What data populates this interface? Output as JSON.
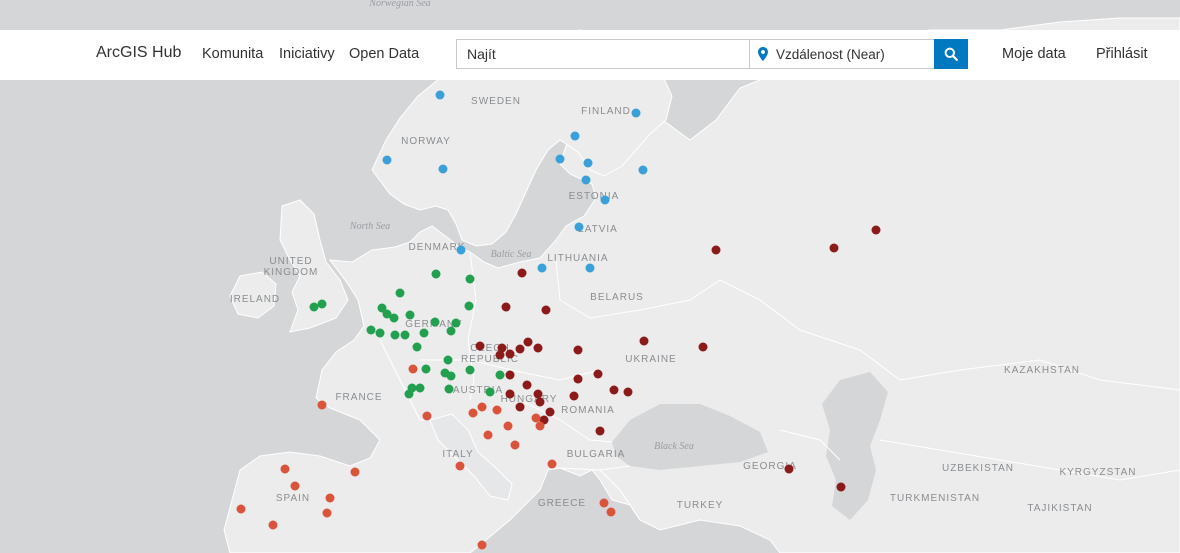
{
  "header": {
    "brand": "ArcGIS Hub",
    "nav": [
      "Komunita",
      "Iniciativy",
      "Open Data"
    ],
    "search_placeholder": "Najít",
    "location_placeholder": "Vzdálenost (Near)",
    "my_data": "Moje data",
    "sign_in": "Přihlásit",
    "accent_color": "#0079c1"
  },
  "map": {
    "sea_labels": [
      "Norwegian Sea",
      "North Sea",
      "Baltic Sea",
      "Black Sea"
    ],
    "country_labels": [
      "SWEDEN",
      "FINLAND",
      "NORWAY",
      "ESTONIA",
      "LATVIA",
      "DENMARK",
      "LITHUANIA",
      "UNITED",
      "KINGDOM",
      "IRELAND",
      "BELARUS",
      "GERMANY",
      "CZECH",
      "REPUBLIC",
      "UKRAINE",
      "KAZAKHSTAN",
      "FRANCE",
      "AUSTRIA",
      "HUNGARY",
      "ROMANIA",
      "ITALY",
      "BULGARIA",
      "GEORGIA",
      "UZBEKISTAN",
      "KYRGYZSTAN",
      "SPAIN",
      "GREECE",
      "TURKEY",
      "TURKMENISTAN",
      "TAJIKISTAN"
    ],
    "point_colors": {
      "blue": "#3ca0d8",
      "green": "#22a050",
      "darkred": "#8b1a1a",
      "orange": "#d9543a"
    }
  }
}
